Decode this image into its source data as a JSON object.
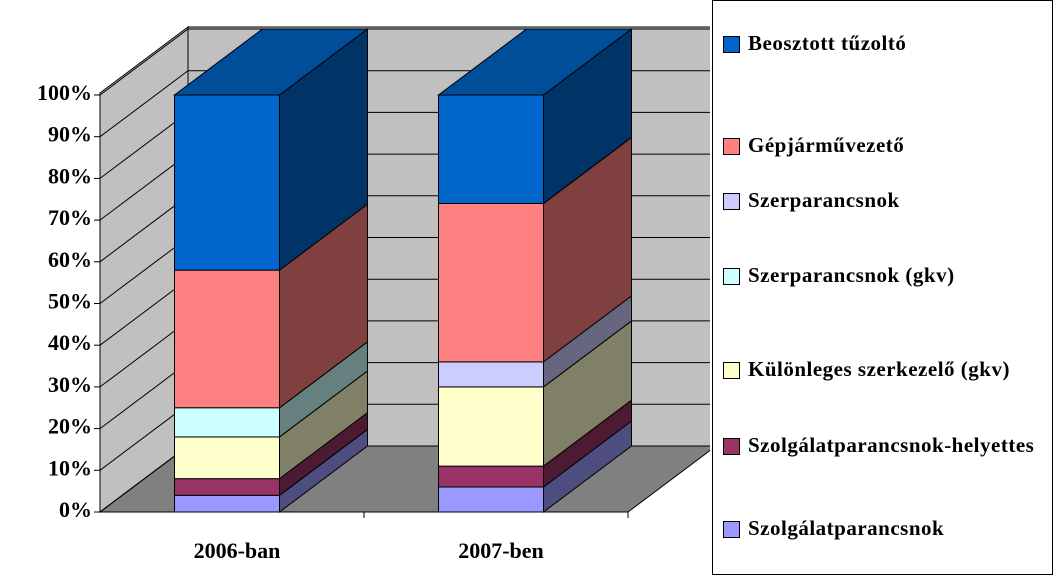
{
  "chart_data": {
    "type": "bar3d_stacked_percent",
    "categories": [
      "2006-ban",
      "2007-ben"
    ],
    "series": [
      {
        "name": "Szolgálatparancsnok",
        "color": "#9999ff",
        "values": [
          4,
          6
        ]
      },
      {
        "name": "Szolgálatparancsnok-helyettes",
        "color": "#993366",
        "values": [
          4,
          5
        ]
      },
      {
        "name": "Különleges szerkezelő (gkv)",
        "color": "#ffffcc",
        "values": [
          10,
          19
        ]
      },
      {
        "name": "Szerparancsnok (gkv)",
        "color": "#ccffff",
        "values": [
          7,
          0
        ]
      },
      {
        "name": "Szerparancsnok",
        "color": "#ccccff",
        "values": [
          0,
          6
        ]
      },
      {
        "name": "Gépjárművezető",
        "color": "#ff8080",
        "values": [
          33,
          38
        ]
      },
      {
        "name": "Beosztott tűzoltó",
        "color": "#0066cc",
        "values": [
          42,
          26
        ]
      }
    ],
    "ylim": [
      0,
      100
    ],
    "yticks": [
      {
        "value": 0,
        "label": "0%"
      },
      {
        "value": 10,
        "label": "10%"
      },
      {
        "value": 20,
        "label": "20%"
      },
      {
        "value": 30,
        "label": "30%"
      },
      {
        "value": 40,
        "label": "40%"
      },
      {
        "value": 50,
        "label": "50%"
      },
      {
        "value": 60,
        "label": "60%"
      },
      {
        "value": 70,
        "label": "70%"
      },
      {
        "value": 80,
        "label": "80%"
      },
      {
        "value": 90,
        "label": "90%"
      },
      {
        "value": 100,
        "label": "100%"
      }
    ],
    "grid": true,
    "legend": "right"
  }
}
